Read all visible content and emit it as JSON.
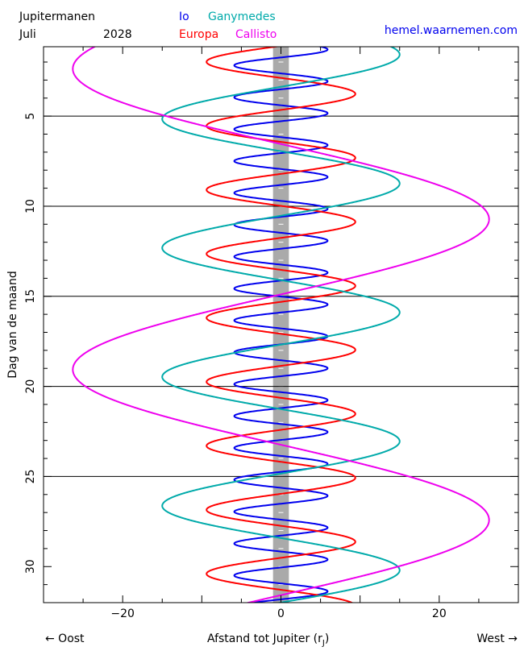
{
  "header": {
    "title": "Jupitermanen",
    "month": "Juli",
    "year": "2028",
    "site": "hemel.waarnemen.com"
  },
  "footer": {
    "east": "← Oost",
    "west": "West →",
    "xlabel_main": "Afstand tot Jupiter (r",
    "xlabel_sub": "J",
    "xlabel_close": ")"
  },
  "chart_data": {
    "type": "line",
    "title": "Jupitermanen",
    "xlabel": "Afstand tot Jupiter (rJ)",
    "ylabel": "Dag van de maand",
    "xlim": [
      -30,
      30
    ],
    "ylim": [
      32,
      1.15
    ],
    "x_ticks": [
      -20,
      0,
      20
    ],
    "y_ticks": [
      5,
      10,
      15,
      20,
      25,
      30
    ],
    "day_lines": [
      5,
      10,
      15,
      20,
      25
    ],
    "jupiter_radius": 1,
    "legend_layout": "top, two rows",
    "series": [
      {
        "name": "Io",
        "color": "#0000ee",
        "amplitude": 5.9,
        "period_days": 1.769,
        "phase_day": 2.63
      },
      {
        "name": "Europa",
        "color": "#ff0000",
        "amplitude": 9.4,
        "period_days": 3.551,
        "phase_day": 2.88
      },
      {
        "name": "Ganymedes",
        "color": "#00aaaa",
        "amplitude": 15.0,
        "period_days": 7.155,
        "phase_day": 6.95
      },
      {
        "name": "Callisto",
        "color": "#ee00ee",
        "amplitude": 26.3,
        "period_days": 16.69,
        "phase_day": 6.55
      }
    ],
    "colors": {
      "jupiter": "#aaaaaa",
      "axis": "#000000"
    }
  }
}
